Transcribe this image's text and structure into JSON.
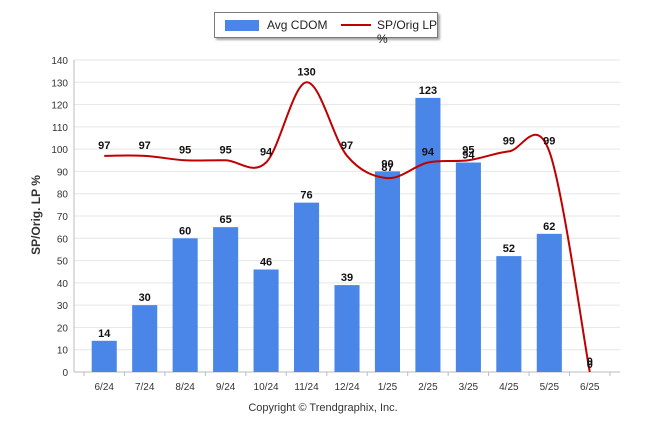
{
  "chart_data": {
    "type": "bar",
    "categories": [
      "6/24",
      "7/24",
      "8/24",
      "9/24",
      "10/24",
      "11/24",
      "12/24",
      "1/25",
      "2/25",
      "3/25",
      "4/25",
      "5/25",
      "6/25"
    ],
    "ylabel": "SP/Orig. LP %",
    "xlabel": "",
    "ylim": [
      0,
      140
    ],
    "yticks": [
      0,
      10,
      20,
      30,
      40,
      50,
      60,
      70,
      80,
      90,
      100,
      110,
      120,
      130,
      140
    ],
    "grid": true,
    "legend_placement": "top-center",
    "series": [
      {
        "name": "Avg CDOM",
        "type": "bar",
        "color": "#4a86e8",
        "values": [
          14,
          30,
          60,
          65,
          46,
          76,
          39,
          90,
          123,
          94,
          52,
          62,
          0
        ]
      },
      {
        "name": "SP/Orig LP %",
        "type": "line",
        "color": "#c00000",
        "values": [
          97,
          97,
          95,
          95,
          94,
          130,
          97,
          87,
          94,
          95,
          99,
          99,
          0
        ]
      }
    ]
  },
  "footer": {
    "copyright": "Copyright © Trendgraphix, Inc."
  }
}
